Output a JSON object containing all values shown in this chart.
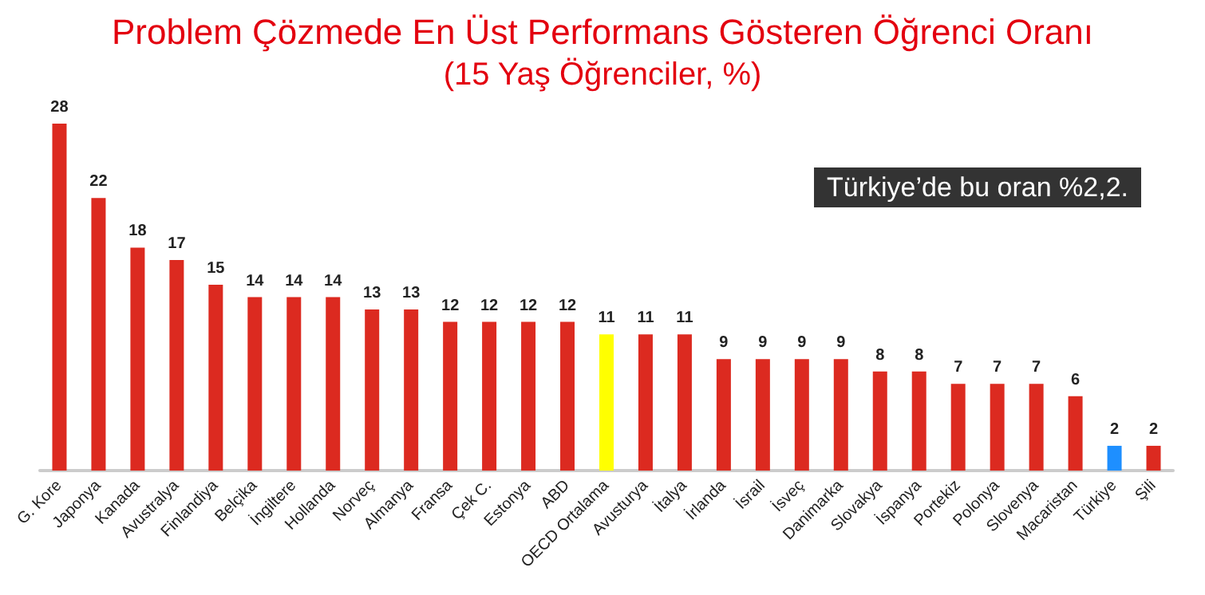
{
  "chart_data": {
    "type": "bar",
    "title": "Problem Çözmede En Üst Performans Gösteren Öğrenci Oranı",
    "subtitle": "(15 Yaş Öğrenciler, %)",
    "categories": [
      "G. Kore",
      "Japonya",
      "Kanada",
      "Avustralya",
      "Finlandiya",
      "Belçika",
      "İngiltere",
      "Hollanda",
      "Norveç",
      "Almanya",
      "Fransa",
      "Çek C.",
      "Estonya",
      "ABD",
      "OECD Ortalama",
      "Avusturya",
      "İtalya",
      "İrlanda",
      "İsrail",
      "İsveç",
      "Danimarka",
      "Slovakya",
      "İspanya",
      "Portekiz",
      "Polonya",
      "Slovenya",
      "Macaristan",
      "Türkiye",
      "Şili"
    ],
    "values": [
      28,
      22,
      18,
      17,
      15,
      14,
      14,
      14,
      13,
      13,
      12,
      12,
      12,
      12,
      11,
      11,
      11,
      9,
      9,
      9,
      9,
      8,
      8,
      7,
      7,
      7,
      6,
      2,
      2
    ],
    "colors": [
      "#dc2a20",
      "#dc2a20",
      "#dc2a20",
      "#dc2a20",
      "#dc2a20",
      "#dc2a20",
      "#dc2a20",
      "#dc2a20",
      "#dc2a20",
      "#dc2a20",
      "#dc2a20",
      "#dc2a20",
      "#dc2a20",
      "#dc2a20",
      "#ffff00",
      "#dc2a20",
      "#dc2a20",
      "#dc2a20",
      "#dc2a20",
      "#dc2a20",
      "#dc2a20",
      "#dc2a20",
      "#dc2a20",
      "#dc2a20",
      "#dc2a20",
      "#dc2a20",
      "#dc2a20",
      "#1e8fff",
      "#dc2a20"
    ],
    "data_labels": true,
    "annotations": [
      "Türkiye’de bu oran %2,2."
    ]
  }
}
